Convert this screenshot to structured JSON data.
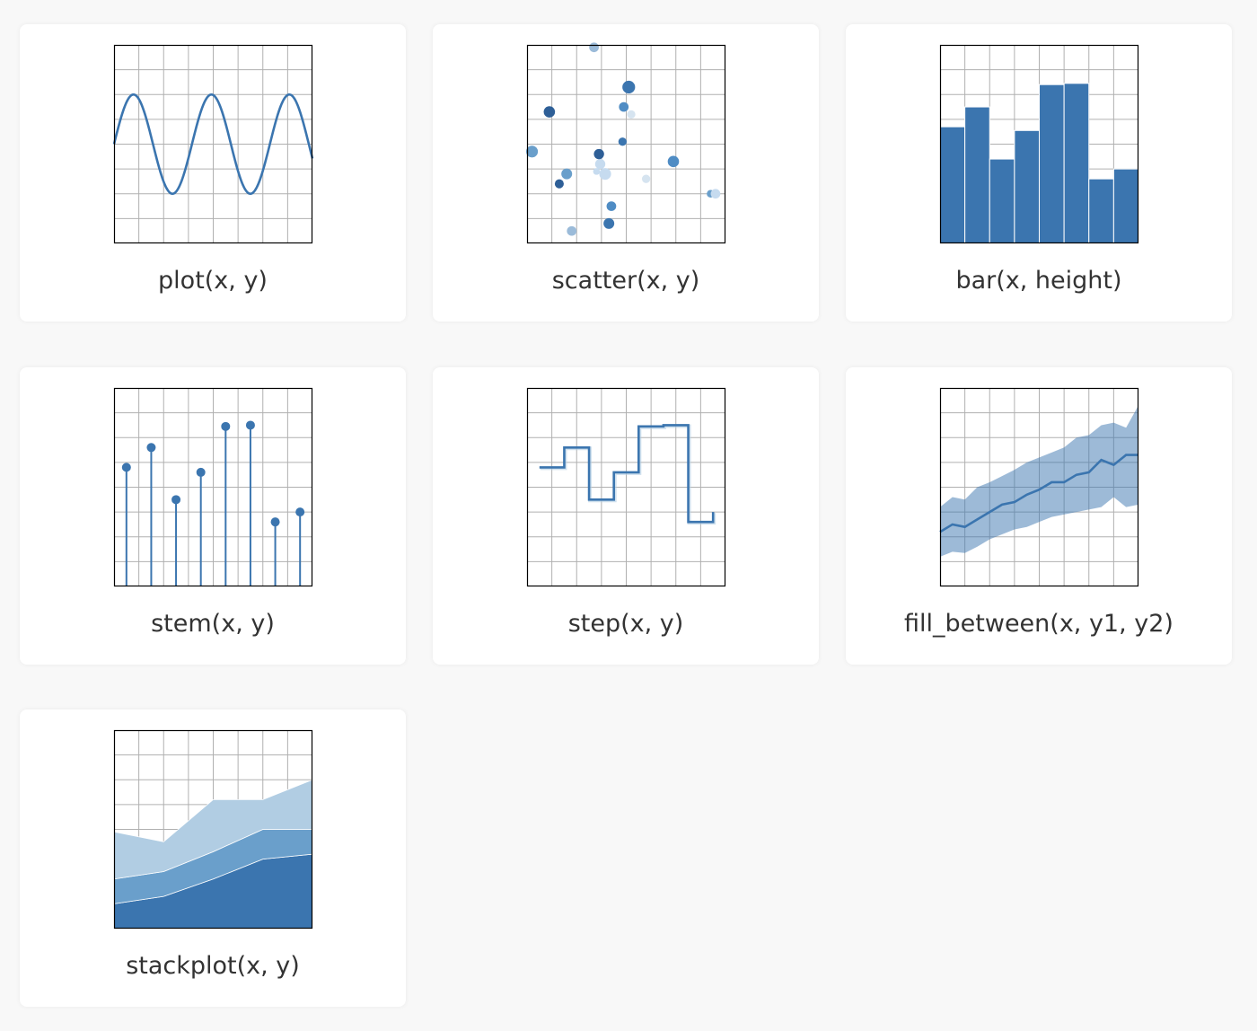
{
  "colors": {
    "line": "#3b75af",
    "fill_band": "#9bbbd9",
    "stack_light": "#b1cde3",
    "stack_mid": "#6a9fcb",
    "stack_dark": "#3b75af",
    "grid": "#b0b0b0",
    "frame": "#000000",
    "card": "#ffffff",
    "page": "#f8f8f8"
  },
  "cards": [
    {
      "id": "plot",
      "caption": "plot(x, y)"
    },
    {
      "id": "scatter",
      "caption": "scatter(x, y)"
    },
    {
      "id": "bar",
      "caption": "bar(x, height)"
    },
    {
      "id": "stem",
      "caption": "stem(x, y)"
    },
    {
      "id": "step",
      "caption": "step(x, y)"
    },
    {
      "id": "fill_between",
      "caption": "fill_between(x, y1, y2)"
    },
    {
      "id": "stackplot",
      "caption": "stackplot(x, y)"
    }
  ],
  "chart_data": [
    {
      "id": "plot",
      "type": "line",
      "xlim": [
        0,
        8
      ],
      "ylim": [
        0,
        8
      ],
      "grid": true,
      "function": "4 + 2*sin(2*x)",
      "x": [
        0,
        0.25,
        0.5,
        0.75,
        1,
        1.25,
        1.5,
        1.75,
        2,
        2.25,
        2.5,
        2.75,
        3,
        3.25,
        3.5,
        3.75,
        4,
        4.25,
        4.5,
        4.75,
        5,
        5.25,
        5.5,
        5.75,
        6,
        6.25,
        6.5,
        6.75,
        7,
        7.25,
        7.5,
        7.75,
        8
      ],
      "y": [
        4.0,
        4.96,
        5.68,
        6.0,
        5.82,
        5.2,
        4.28,
        3.3,
        2.49,
        2.05,
        2.08,
        2.59,
        3.44,
        4.43,
        5.31,
        5.87,
        5.98,
        5.6,
        4.82,
        3.83,
        2.91,
        2.22,
        2.0,
        2.3,
        3.07,
        4.06,
        4.96,
        5.65,
        5.98,
        5.84,
        5.3,
        4.44,
        3.56
      ]
    },
    {
      "id": "scatter",
      "type": "scatter",
      "xlim": [
        0,
        8
      ],
      "ylim": [
        0,
        8
      ],
      "grid": true,
      "x": [
        2.7,
        4.1,
        0.9,
        3.9,
        4.2,
        0.2,
        1.6,
        2.95,
        3.15,
        1.3,
        2.8,
        3.4,
        4.8,
        5.9,
        7.4,
        7.6,
        3.85,
        1.8,
        3.3,
        2.9
      ],
      "y": [
        7.9,
        6.3,
        5.3,
        5.5,
        5.2,
        3.7,
        2.8,
        3.2,
        2.8,
        2.4,
        2.9,
        1.5,
        2.6,
        3.3,
        2.0,
        2.0,
        4.1,
        0.5,
        0.8,
        3.6
      ],
      "sizes": [
        80,
        140,
        110,
        80,
        60,
        120,
        100,
        90,
        120,
        70,
        40,
        80,
        60,
        110,
        50,
        80,
        60,
        80,
        100,
        90
      ],
      "colors": [
        "#9bbbd9",
        "#3b75af",
        "#2e5f97",
        "#4f8cc4",
        "#d6e4f0",
        "#6a9fcb",
        "#6a9fcb",
        "#c6dbef",
        "#c6dbef",
        "#2e5f97",
        "#c6dbef",
        "#4f8cc4",
        "#d6e4f0",
        "#4f8cc4",
        "#6a9fcb",
        "#c6dbef",
        "#3b75af",
        "#9bbbd9",
        "#3b75af",
        "#2e5f97"
      ]
    },
    {
      "id": "bar",
      "type": "bar",
      "xlim": [
        0,
        8
      ],
      "ylim": [
        0,
        8
      ],
      "grid": true,
      "x": [
        0.5,
        1.5,
        2.5,
        3.5,
        4.5,
        5.5,
        6.5,
        7.5
      ],
      "values": [
        4.7,
        5.5,
        3.4,
        4.55,
        6.4,
        6.45,
        2.6,
        3.0
      ]
    },
    {
      "id": "stem",
      "type": "stem",
      "xlim": [
        0,
        8
      ],
      "ylim": [
        0,
        8
      ],
      "grid": true,
      "x": [
        0.5,
        1.5,
        2.5,
        3.5,
        4.5,
        5.5,
        6.5,
        7.5
      ],
      "values": [
        4.8,
        5.6,
        3.5,
        4.6,
        6.45,
        6.5,
        2.6,
        3.0
      ]
    },
    {
      "id": "step",
      "type": "step",
      "xlim": [
        0,
        8
      ],
      "ylim": [
        0,
        8
      ],
      "grid": true,
      "x": [
        0.5,
        1.5,
        2.5,
        3.5,
        4.5,
        5.5,
        6.5,
        7.5
      ],
      "values": [
        4.8,
        5.6,
        3.5,
        4.6,
        6.45,
        6.5,
        2.6,
        3.0
      ]
    },
    {
      "id": "fill_between",
      "type": "area",
      "xlim": [
        0,
        8
      ],
      "ylim": [
        0,
        8
      ],
      "grid": true,
      "x": [
        0,
        0.5,
        1,
        1.5,
        2,
        2.5,
        3,
        3.5,
        4,
        4.5,
        5,
        5.5,
        6,
        6.5,
        7,
        7.5,
        8
      ],
      "y": [
        2.2,
        2.5,
        2.4,
        2.7,
        3.0,
        3.3,
        3.4,
        3.7,
        3.9,
        4.2,
        4.2,
        4.5,
        4.6,
        5.1,
        4.9,
        5.3,
        5.3
      ],
      "y1": [
        1.2,
        1.4,
        1.35,
        1.6,
        1.9,
        2.1,
        2.3,
        2.4,
        2.6,
        2.8,
        2.9,
        3.0,
        3.1,
        3.2,
        3.6,
        3.2,
        3.3
      ],
      "y2": [
        3.2,
        3.6,
        3.5,
        4.0,
        4.2,
        4.45,
        4.7,
        5.0,
        5.2,
        5.4,
        5.6,
        6.0,
        6.1,
        6.5,
        6.6,
        6.4,
        7.3
      ]
    },
    {
      "id": "stackplot",
      "type": "area",
      "xlim": [
        0,
        8
      ],
      "ylim": [
        0,
        8
      ],
      "grid": true,
      "x": [
        0,
        2,
        4,
        6,
        8
      ],
      "series": [
        {
          "values": [
            1.0,
            1.3,
            2.0,
            2.8,
            3.0
          ]
        },
        {
          "values": [
            1.0,
            1.0,
            1.1,
            1.2,
            1.0
          ]
        },
        {
          "values": [
            1.9,
            1.2,
            2.1,
            1.2,
            2.0
          ]
        }
      ]
    }
  ]
}
